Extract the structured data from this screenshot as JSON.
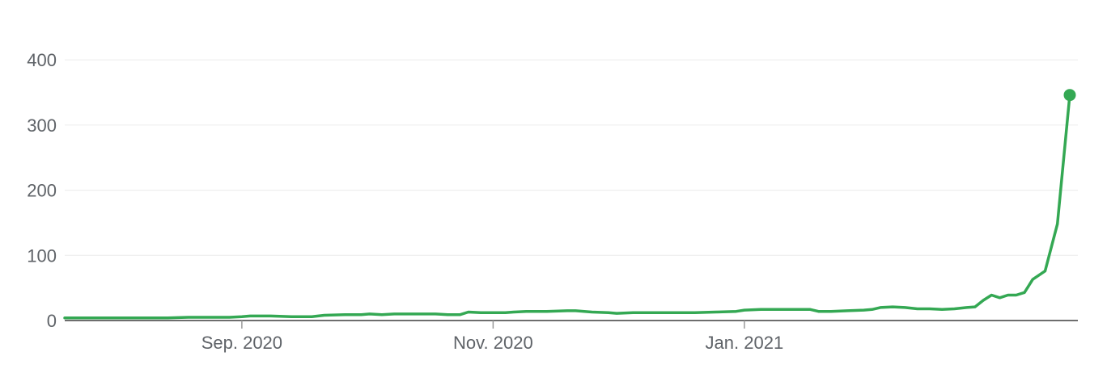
{
  "chart_data": {
    "type": "line",
    "title": "",
    "xlabel": "",
    "ylabel": "",
    "x_start": "2020-07-20",
    "x_end": "2021-01-21",
    "ylim": [
      0,
      420
    ],
    "yticks": [
      {
        "label": "0",
        "value": 0
      },
      {
        "label": "100",
        "value": 100
      },
      {
        "label": "200",
        "value": 200
      },
      {
        "label": "300",
        "value": 300
      },
      {
        "label": "400",
        "value": 400
      }
    ],
    "xticks": [
      {
        "label": "Sep. 2020",
        "date": "2020-09-01"
      },
      {
        "label": "Nov. 2020",
        "date": "2020-11-01"
      },
      {
        "label": "Jan. 2021",
        "date": "2021-01-01"
      }
    ],
    "grid": true,
    "legend": "none",
    "series": [
      {
        "color": "#34a853",
        "highlight_last_point": true,
        "points": [
          [
            "2020-07-20",
            4
          ],
          [
            "2020-07-25",
            4
          ],
          [
            "2020-07-30",
            4
          ],
          [
            "2020-08-04",
            4
          ],
          [
            "2020-08-09",
            4
          ],
          [
            "2020-08-14",
            4
          ],
          [
            "2020-08-19",
            5
          ],
          [
            "2020-08-24",
            5
          ],
          [
            "2020-08-29",
            5
          ],
          [
            "2020-09-01",
            6
          ],
          [
            "2020-09-03",
            7
          ],
          [
            "2020-09-08",
            7
          ],
          [
            "2020-09-13",
            6
          ],
          [
            "2020-09-18",
            6
          ],
          [
            "2020-09-21",
            8
          ],
          [
            "2020-09-26",
            9
          ],
          [
            "2020-09-30",
            9
          ],
          [
            "2020-10-02",
            10
          ],
          [
            "2020-10-05",
            9
          ],
          [
            "2020-10-08",
            10
          ],
          [
            "2020-10-13",
            10
          ],
          [
            "2020-10-18",
            10
          ],
          [
            "2020-10-21",
            9
          ],
          [
            "2020-10-24",
            9
          ],
          [
            "2020-10-26",
            13
          ],
          [
            "2020-10-29",
            12
          ],
          [
            "2020-11-01",
            12
          ],
          [
            "2020-11-04",
            12
          ],
          [
            "2020-11-06",
            13
          ],
          [
            "2020-11-09",
            14
          ],
          [
            "2020-11-14",
            14
          ],
          [
            "2020-11-19",
            15
          ],
          [
            "2020-11-21",
            15
          ],
          [
            "2020-11-25",
            13
          ],
          [
            "2020-11-29",
            12
          ],
          [
            "2020-12-01",
            11
          ],
          [
            "2020-12-05",
            12
          ],
          [
            "2020-12-10",
            12
          ],
          [
            "2020-12-15",
            12
          ],
          [
            "2020-12-20",
            12
          ],
          [
            "2020-12-25",
            13
          ],
          [
            "2020-12-30",
            14
          ],
          [
            "2021-01-01",
            16
          ],
          [
            "2021-01-05",
            17
          ],
          [
            "2021-01-09",
            17
          ],
          [
            "2021-01-13",
            17
          ],
          [
            "2021-01-17",
            17
          ],
          [
            "2021-01-19",
            14
          ],
          [
            "2021-01-22",
            14
          ],
          [
            "2021-01-26",
            15
          ],
          [
            "2021-01-30",
            16
          ],
          [
            "2021-02-01",
            17
          ],
          [
            "2021-02-03",
            20
          ],
          [
            "2021-02-06",
            21
          ],
          [
            "2021-02-09",
            20
          ],
          [
            "2021-02-12",
            18
          ],
          [
            "2021-02-15",
            18
          ],
          [
            "2021-02-18",
            17
          ],
          [
            "2021-02-21",
            18
          ],
          [
            "2021-02-24",
            20
          ],
          [
            "2021-02-26",
            21
          ],
          [
            "2021-02-28",
            31
          ],
          [
            "2021-03-02",
            39
          ],
          [
            "2021-03-04",
            35
          ],
          [
            "2021-03-06",
            39
          ],
          [
            "2021-03-08",
            39
          ],
          [
            "2021-03-10",
            43
          ],
          [
            "2021-03-12",
            63
          ],
          [
            "2021-03-15",
            76
          ],
          [
            "2021-03-18",
            148
          ],
          [
            "2021-03-21",
            346
          ]
        ]
      }
    ]
  }
}
